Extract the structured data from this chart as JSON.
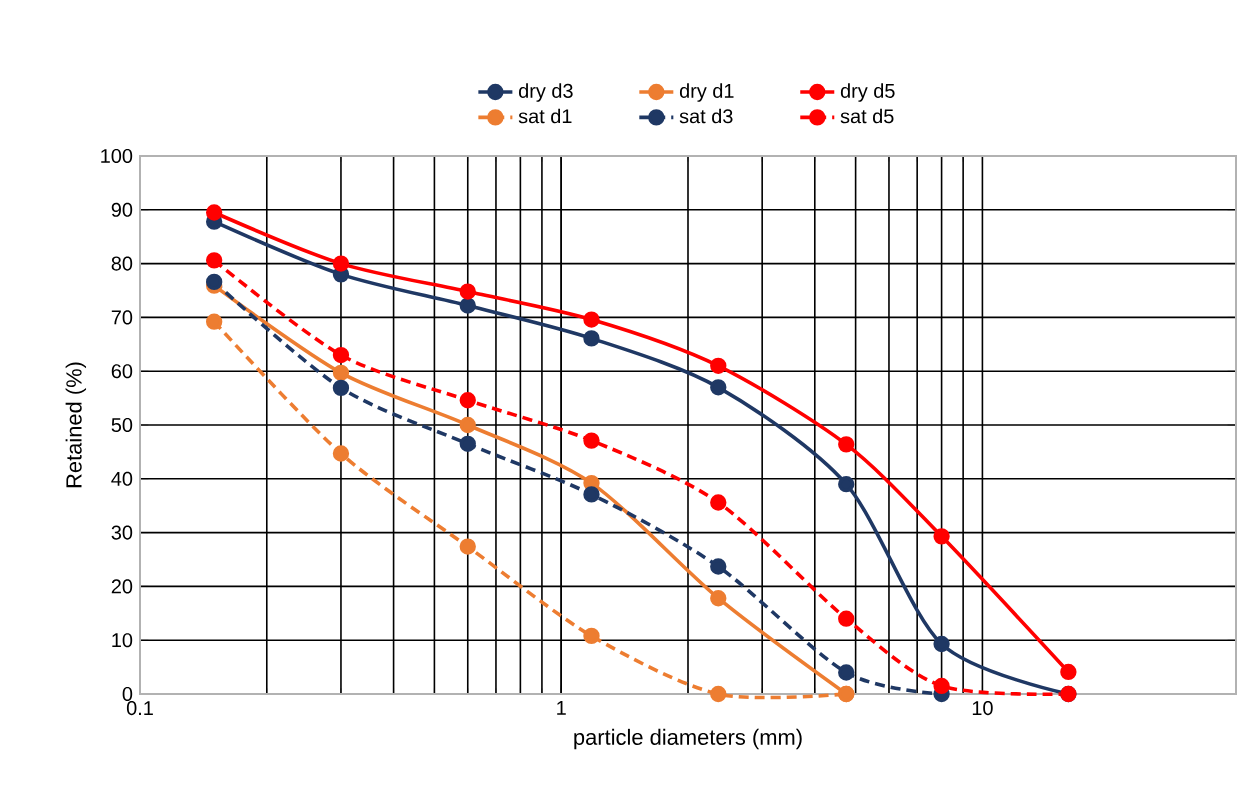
{
  "chart_data": {
    "type": "line",
    "xlabel": "particle diameters (mm)",
    "ylabel": "Retained (%)",
    "log": "x",
    "xlim": [
      0.1,
      40
    ],
    "xticks": [
      0.1,
      1,
      10
    ],
    "ylim": [
      0,
      100
    ],
    "yticks": [
      0,
      10,
      20,
      30,
      40,
      50,
      60,
      70,
      80,
      90,
      100
    ],
    "grid": true,
    "legend": "top",
    "marker": "circle",
    "series": [
      {
        "name": "dry d3",
        "color": "#1f3864",
        "line_style": "solid",
        "x": [
          0.15,
          0.3,
          0.6,
          1.18,
          2.36,
          4.75,
          8,
          16
        ],
        "values": [
          87.8,
          78,
          72.2,
          66.1,
          57,
          39,
          9.3,
          0
        ]
      },
      {
        "name": "dry d1",
        "color": "#ed7d31",
        "line_style": "solid",
        "x": [
          0.15,
          0.3,
          0.6,
          1.18,
          2.36,
          4.75
        ],
        "values": [
          75.9,
          59.7,
          50,
          39.2,
          17.8,
          0
        ]
      },
      {
        "name": "dry d5",
        "color": "#ff0000",
        "line_style": "solid",
        "x": [
          0.15,
          0.3,
          0.6,
          1.18,
          2.36,
          4.75,
          8,
          16
        ],
        "values": [
          89.5,
          80,
          74.8,
          69.6,
          61,
          46.4,
          29.3,
          4.1
        ]
      },
      {
        "name": "sat d1",
        "color": "#ed7d31",
        "line_style": "dashed",
        "x": [
          0.15,
          0.3,
          0.6,
          1.18,
          2.36,
          4.75
        ],
        "values": [
          69.2,
          44.7,
          27.4,
          10.8,
          0,
          0
        ]
      },
      {
        "name": "sat d3",
        "color": "#1f3864",
        "line_style": "dashed",
        "x": [
          0.15,
          0.3,
          0.6,
          1.18,
          2.36,
          4.75,
          8
        ],
        "values": [
          76.6,
          56.9,
          46.5,
          37.1,
          23.7,
          4,
          0
        ]
      },
      {
        "name": "sat d5",
        "color": "#ff0000",
        "line_style": "dashed",
        "x": [
          0.15,
          0.3,
          0.6,
          1.18,
          2.36,
          4.75,
          8,
          16
        ],
        "values": [
          80.6,
          63,
          54.6,
          47.1,
          35.6,
          14,
          1.5,
          0
        ]
      }
    ]
  }
}
